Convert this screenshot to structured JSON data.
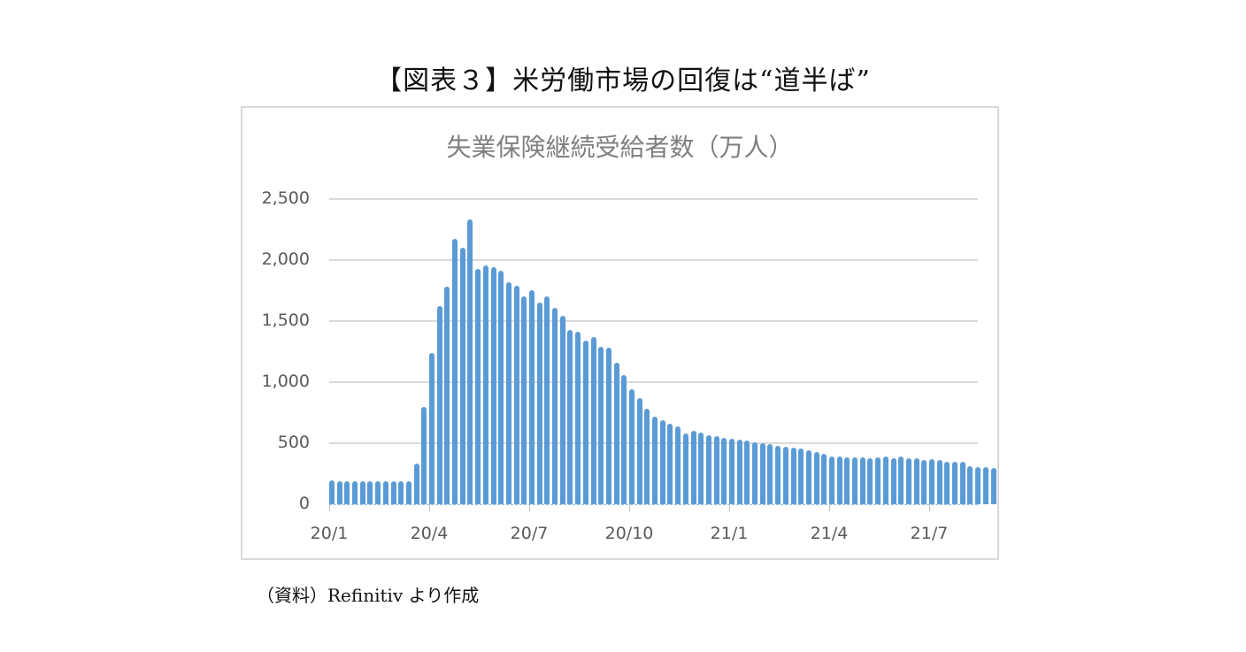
{
  "figure": {
    "title": "【図表３】米労働市場の回復は“道半ば”",
    "source": "（資料）Refinitiv より作成"
  },
  "chart_data": {
    "type": "bar",
    "title": "失業保険継続受給者数（万人）",
    "xlabel": "",
    "ylabel": "",
    "ylim": [
      0,
      2500
    ],
    "yticks": [
      0,
      500,
      1000,
      1500,
      2000,
      2500
    ],
    "ytick_labels": [
      "0",
      "500",
      "1,000",
      "1,500",
      "2,000",
      "2,500"
    ],
    "xtick_labels": [
      "20/1",
      "20/4",
      "20/7",
      "20/10",
      "21/1",
      "21/4",
      "21/7"
    ],
    "grid": true,
    "legend": "none",
    "bar_color": "#5b9bd5",
    "frequency": "weekly",
    "series": [
      {
        "name": "失業保険継続受給者数",
        "values": [
          195,
          190,
          188,
          192,
          188,
          190,
          187,
          189,
          187,
          186,
          192,
          330,
          800,
          1240,
          1620,
          1780,
          2175,
          2100,
          2330,
          1930,
          1955,
          1945,
          1910,
          1820,
          1790,
          1700,
          1755,
          1650,
          1700,
          1610,
          1545,
          1430,
          1410,
          1340,
          1370,
          1290,
          1285,
          1160,
          1060,
          940,
          870,
          785,
          720,
          690,
          660,
          635,
          580,
          600,
          585,
          565,
          555,
          540,
          535,
          530,
          520,
          510,
          500,
          490,
          480,
          470,
          465,
          455,
          440,
          430,
          410,
          395,
          390,
          385,
          385,
          385,
          380,
          385,
          390,
          380,
          395,
          380,
          375,
          365,
          370,
          360,
          350,
          345,
          350,
          315,
          305,
          305,
          300
        ]
      }
    ]
  }
}
